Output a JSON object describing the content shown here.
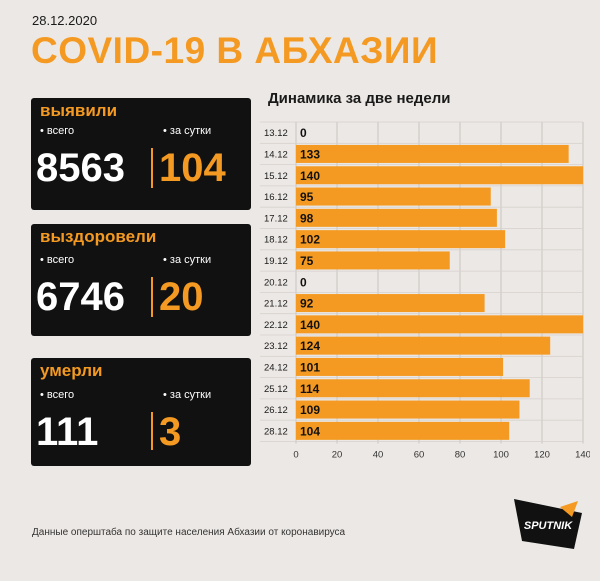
{
  "date": "28.12.2020",
  "title": "COVID-19 В АБХАЗИИ",
  "cards": {
    "detected": {
      "title": "выявили",
      "total_label": "• всего",
      "day_label": "• за сутки",
      "total": "8563",
      "day": "104"
    },
    "recovered": {
      "title": "выздоровели",
      "total_label": "• всего",
      "day_label": "• за сутки",
      "total": "6746",
      "day": "20"
    },
    "died": {
      "title": "умерли",
      "total_label": "• всего",
      "day_label": "• за сутки",
      "total": "111",
      "day": "3"
    }
  },
  "chart_title": "Динамика за две недели",
  "chart_data": {
    "type": "bar",
    "orientation": "horizontal",
    "categories": [
      "13.12",
      "14.12",
      "15.12",
      "16.12",
      "17.12",
      "18.12",
      "19.12",
      "20.12",
      "21.12",
      "22.12",
      "23.12",
      "24.12",
      "25.12",
      "26.12",
      "28.12"
    ],
    "values": [
      0,
      133,
      140,
      95,
      98,
      102,
      75,
      0,
      92,
      140,
      124,
      101,
      114,
      109,
      104
    ],
    "xticks": [
      0,
      20,
      40,
      60,
      80,
      100,
      120,
      140
    ],
    "xlim": [
      0,
      140
    ],
    "bar_color": "#f49a22",
    "grid": true
  },
  "footnote": "Данные оперштаба по защите населения Абхазии от коронавируса",
  "logo_text": "SPUTNIK",
  "colors": {
    "accent": "#f49a22",
    "card_bg": "#111111",
    "background": "#ece8e5"
  }
}
